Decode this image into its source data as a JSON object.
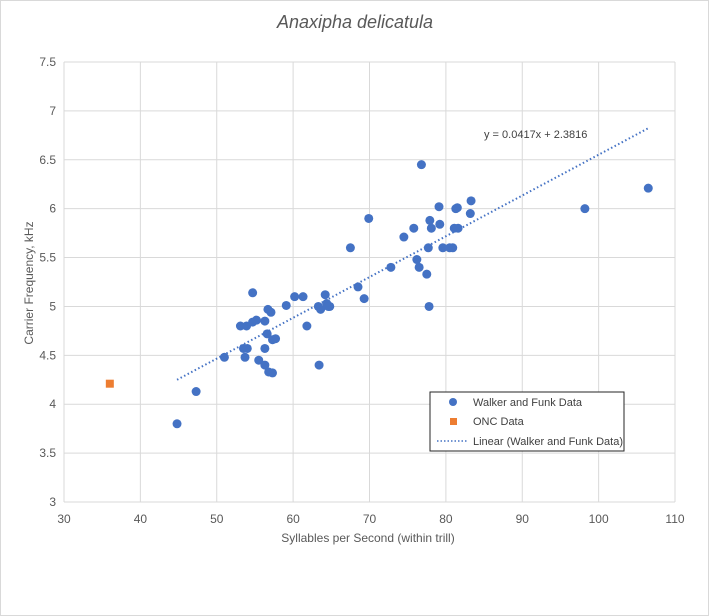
{
  "chart_data": {
    "type": "scatter",
    "title": "Anaxipha delicatula",
    "xlabel": "Syllables per Second (within trill)",
    "ylabel": "Carrier Frequency, kHz",
    "xlim": [
      30,
      110
    ],
    "ylim": [
      3,
      7.5
    ],
    "xticks": [
      "30",
      "40",
      "50",
      "60",
      "70",
      "80",
      "90",
      "100",
      "110"
    ],
    "yticks": [
      "3",
      "3.5",
      "4",
      "4.5",
      "5",
      "5.5",
      "6",
      "6.5",
      "7",
      "7.5"
    ],
    "grid": true,
    "legend_position": "bottom-right",
    "series": [
      {
        "name": "Walker and Funk Data",
        "color": "#4472C4",
        "marker": "circle",
        "points": [
          [
            44.8,
            3.8
          ],
          [
            47.3,
            4.13
          ],
          [
            51,
            4.48
          ],
          [
            53.1,
            4.8
          ],
          [
            53.5,
            4.57
          ],
          [
            53.7,
            4.48
          ],
          [
            53.9,
            4.8
          ],
          [
            54,
            4.57
          ],
          [
            54.7,
            4.84
          ],
          [
            54.7,
            5.14
          ],
          [
            55.2,
            4.86
          ],
          [
            55.5,
            4.45
          ],
          [
            56.3,
            4.57
          ],
          [
            56.3,
            4.85
          ],
          [
            56.3,
            4.4
          ],
          [
            56.6,
            4.72
          ],
          [
            56.7,
            4.97
          ],
          [
            56.8,
            4.33
          ],
          [
            57.1,
            4.94
          ],
          [
            57.3,
            4.66
          ],
          [
            57.3,
            4.32
          ],
          [
            57.7,
            4.67
          ],
          [
            59.1,
            5.01
          ],
          [
            60.2,
            5.1
          ],
          [
            61.3,
            5.1
          ],
          [
            61.8,
            4.8
          ],
          [
            63.3,
            5.0
          ],
          [
            63.4,
            4.4
          ],
          [
            63.6,
            4.97
          ],
          [
            64.2,
            5.12
          ],
          [
            64.4,
            5.03
          ],
          [
            64.6,
            5.0
          ],
          [
            64.8,
            5.0
          ],
          [
            67.5,
            5.6
          ],
          [
            68.5,
            5.2
          ],
          [
            69.3,
            5.08
          ],
          [
            69.9,
            5.9
          ],
          [
            72.8,
            5.4
          ],
          [
            74.5,
            5.71
          ],
          [
            75.8,
            5.8
          ],
          [
            76.2,
            5.48
          ],
          [
            76.5,
            5.4
          ],
          [
            76.8,
            6.45
          ],
          [
            77.5,
            5.33
          ],
          [
            77.7,
            5.6
          ],
          [
            77.8,
            5.0
          ],
          [
            77.9,
            5.88
          ],
          [
            78.1,
            5.8
          ],
          [
            79.1,
            6.02
          ],
          [
            79.2,
            5.84
          ],
          [
            79.6,
            5.6
          ],
          [
            80.5,
            5.6
          ],
          [
            80.9,
            5.6
          ],
          [
            81.1,
            5.8
          ],
          [
            81.3,
            6.0
          ],
          [
            81.5,
            6.01
          ],
          [
            81.6,
            5.8
          ],
          [
            83.2,
            5.95
          ],
          [
            83.3,
            6.08
          ],
          [
            98.2,
            6.0
          ],
          [
            106.5,
            6.21
          ]
        ]
      },
      {
        "name": "ONC Data",
        "color": "#ED7D31",
        "marker": "square",
        "points": [
          [
            36,
            4.21
          ]
        ]
      }
    ],
    "trendline": {
      "name": "Linear (Walker and Funk Data)",
      "color": "#4472C4",
      "style": "dotted",
      "slope": 0.0417,
      "intercept": 2.3816,
      "x_range": [
        44.8,
        106.5
      ],
      "equation_label": "y = 0.0417x + 2.3816"
    }
  }
}
